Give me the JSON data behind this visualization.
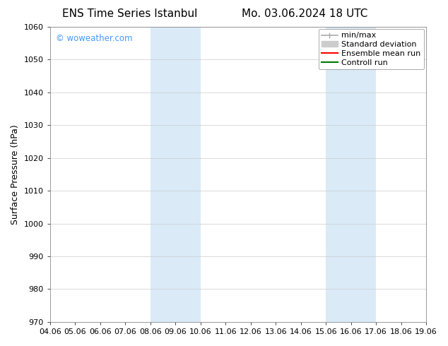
{
  "title_left": "ENS Time Series Istanbul",
  "title_right": "Mo. 03.06.2024 18 UTC",
  "ylabel": "Surface Pressure (hPa)",
  "ylim": [
    970,
    1060
  ],
  "yticks": [
    970,
    980,
    990,
    1000,
    1010,
    1020,
    1030,
    1040,
    1050,
    1060
  ],
  "xtick_labels": [
    "04.06",
    "05.06",
    "06.06",
    "07.06",
    "08.06",
    "09.06",
    "10.06",
    "11.06",
    "12.06",
    "13.06",
    "14.06",
    "15.06",
    "16.06",
    "17.06",
    "18.06",
    "19.06"
  ],
  "shaded_regions": [
    {
      "xstart": 4,
      "xend": 6,
      "color": "#daeaf7"
    },
    {
      "xstart": 11,
      "xend": 13,
      "color": "#daeaf7"
    }
  ],
  "watermark": "© woweather.com",
  "watermark_color": "#4499ff",
  "legend_entries": [
    {
      "label": "min/max",
      "color": "#aaaaaa",
      "lw": 1.2
    },
    {
      "label": "Standard deviation",
      "color": "#cccccc",
      "lw": 7
    },
    {
      "label": "Ensemble mean run",
      "color": "#ff0000",
      "lw": 1.5
    },
    {
      "label": "Controll run",
      "color": "#007700",
      "lw": 1.5
    }
  ],
  "bg_color": "#ffffff",
  "grid_color": "#cccccc",
  "spine_color": "#888888",
  "title_fontsize": 11,
  "axis_label_fontsize": 9,
  "tick_fontsize": 8,
  "legend_fontsize": 8
}
